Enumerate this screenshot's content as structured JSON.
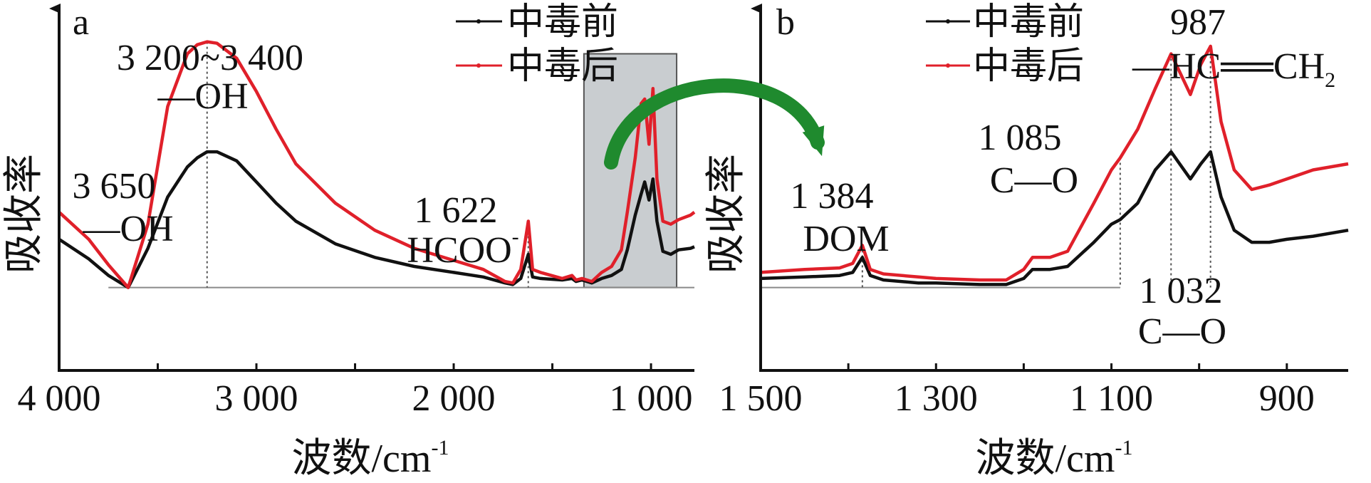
{
  "figure": {
    "arrow_color": "#1f8a2e",
    "highlight_fill": "#c9cdd0",
    "colors": {
      "before": "#111111",
      "after": "#e0202a",
      "baseline": "#8a8a8a"
    }
  },
  "chart_data": [
    {
      "id": "a",
      "type": "line",
      "panel_label": "a",
      "xlabel": "波数/cm",
      "xlabel_sup": "-1",
      "ylabel": "吸收率",
      "xlim": [
        4000,
        780
      ],
      "ylim": [
        -0.55,
        1.85
      ],
      "x_ticks": [
        4000,
        3000,
        2000,
        1000
      ],
      "x_tick_labels": [
        "4 000",
        "3 000",
        "2 000",
        "1 000"
      ],
      "x_minor_ticks": [
        3500,
        2500,
        1500
      ],
      "grid": false,
      "legend": {
        "position": "top-right",
        "entries": [
          "中毒前",
          "中毒后"
        ]
      },
      "highlight_region": [
        1340,
        870
      ],
      "series": [
        {
          "name": "中毒前",
          "color": "#111111",
          "x": [
            4000,
            3850,
            3750,
            3650,
            3550,
            3450,
            3350,
            3300,
            3250,
            3200,
            3100,
            3000,
            2900,
            2800,
            2600,
            2400,
            2200,
            2000,
            1850,
            1740,
            1700,
            1660,
            1622,
            1600,
            1560,
            1450,
            1400,
            1380,
            1350,
            1300,
            1250,
            1200,
            1150,
            1120,
            1080,
            1050,
            1032,
            1010,
            990,
            970,
            940,
            900,
            860,
            800,
            780
          ],
          "y": [
            0.32,
            0.19,
            0.08,
            0.0,
            0.26,
            0.6,
            0.8,
            0.86,
            0.9,
            0.9,
            0.84,
            0.7,
            0.56,
            0.44,
            0.29,
            0.2,
            0.14,
            0.1,
            0.07,
            0.03,
            0.02,
            0.06,
            0.22,
            0.07,
            0.06,
            0.05,
            0.06,
            0.04,
            0.05,
            0.03,
            0.06,
            0.08,
            0.12,
            0.25,
            0.48,
            0.62,
            0.7,
            0.58,
            0.72,
            0.44,
            0.24,
            0.22,
            0.25,
            0.26,
            0.27
          ]
        },
        {
          "name": "中毒后",
          "color": "#e0202a",
          "x": [
            4000,
            3850,
            3750,
            3650,
            3550,
            3450,
            3350,
            3300,
            3250,
            3200,
            3100,
            3000,
            2900,
            2800,
            2600,
            2400,
            2200,
            2000,
            1850,
            1740,
            1700,
            1660,
            1622,
            1600,
            1560,
            1450,
            1400,
            1380,
            1350,
            1300,
            1250,
            1200,
            1150,
            1120,
            1080,
            1050,
            1032,
            1010,
            990,
            970,
            940,
            900,
            860,
            800,
            780
          ],
          "y": [
            0.5,
            0.32,
            0.15,
            0.0,
            0.42,
            1.2,
            1.55,
            1.61,
            1.63,
            1.62,
            1.52,
            1.3,
            1.05,
            0.82,
            0.56,
            0.38,
            0.26,
            0.18,
            0.12,
            0.04,
            0.03,
            0.12,
            0.44,
            0.12,
            0.1,
            0.06,
            0.08,
            0.05,
            0.06,
            0.04,
            0.1,
            0.14,
            0.25,
            0.5,
            0.86,
            1.22,
            1.25,
            0.95,
            1.32,
            0.72,
            0.44,
            0.42,
            0.45,
            0.48,
            0.5
          ]
        }
      ],
      "baseline": {
        "x": [
          3750,
          780
        ],
        "y": 0
      },
      "annotations": [
        {
          "lines": [
            "3 200~3 400",
            "—OH"
          ],
          "x": 3250
        },
        {
          "lines": [
            "3 650",
            "—OH"
          ],
          "x": 3650
        },
        {
          "lines": [
            "1 622",
            "HCOO"
          ],
          "sup": "-",
          "x": 1622
        }
      ]
    },
    {
      "id": "b",
      "type": "line",
      "panel_label": "b",
      "xlabel": "波数/cm",
      "xlabel_sup": "-1",
      "ylabel": "吸收率",
      "xlim": [
        1500,
        830
      ],
      "ylim": [
        -0.55,
        1.85
      ],
      "x_ticks": [
        1500,
        1300,
        1100,
        900
      ],
      "x_tick_labels": [
        "1 500",
        "1 300",
        "1 100",
        "900"
      ],
      "x_minor_ticks": [
        1400,
        1200,
        1000
      ],
      "grid": false,
      "legend": {
        "position": "top-center",
        "entries": [
          "中毒前",
          "中毒后"
        ]
      },
      "series": [
        {
          "name": "中毒前",
          "color": "#111111",
          "x": [
            1500,
            1450,
            1410,
            1395,
            1384,
            1375,
            1360,
            1320,
            1300,
            1250,
            1220,
            1200,
            1190,
            1170,
            1150,
            1120,
            1100,
            1090,
            1070,
            1050,
            1032,
            1010,
            998,
            987,
            975,
            960,
            940,
            920,
            900,
            870,
            830
          ],
          "y": [
            0.06,
            0.07,
            0.08,
            0.1,
            0.2,
            0.08,
            0.05,
            0.03,
            0.03,
            0.02,
            0.02,
            0.06,
            0.12,
            0.12,
            0.14,
            0.3,
            0.42,
            0.45,
            0.56,
            0.78,
            0.9,
            0.72,
            0.82,
            0.9,
            0.6,
            0.38,
            0.3,
            0.3,
            0.32,
            0.34,
            0.38
          ]
        },
        {
          "name": "中毒后",
          "color": "#e0202a",
          "x": [
            1500,
            1450,
            1410,
            1395,
            1384,
            1375,
            1360,
            1320,
            1300,
            1250,
            1220,
            1200,
            1190,
            1170,
            1150,
            1120,
            1100,
            1090,
            1070,
            1050,
            1032,
            1010,
            998,
            987,
            975,
            960,
            940,
            920,
            900,
            870,
            830
          ],
          "y": [
            0.1,
            0.12,
            0.13,
            0.16,
            0.28,
            0.12,
            0.09,
            0.07,
            0.06,
            0.05,
            0.05,
            0.12,
            0.2,
            0.2,
            0.24,
            0.56,
            0.78,
            0.86,
            1.05,
            1.32,
            1.55,
            1.28,
            1.48,
            1.6,
            1.1,
            0.78,
            0.65,
            0.68,
            0.72,
            0.78,
            0.82
          ]
        }
      ],
      "baseline": {
        "x": [
          1500,
          1090
        ],
        "y": 0
      },
      "annotations": [
        {
          "lines": [
            "987",
            "—HC══CH"
          ],
          "sub": "2",
          "x": 987
        },
        {
          "lines": [
            "1 085",
            "C—O"
          ],
          "x": 1090
        },
        {
          "lines": [
            "1 384",
            "DOM"
          ],
          "x": 1384
        },
        {
          "lines": [
            "1 032",
            "C—O"
          ],
          "x": 1032
        }
      ]
    }
  ]
}
